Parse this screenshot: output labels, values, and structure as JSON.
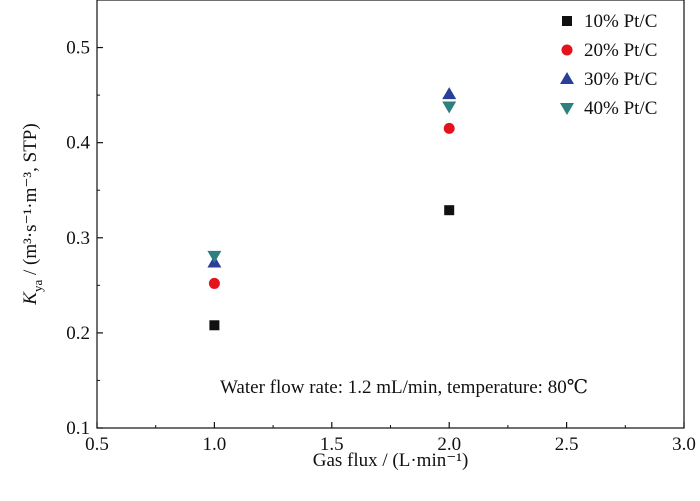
{
  "chart_data": {
    "type": "scatter",
    "title": "",
    "xlabel": "Gas flux / (L·min⁻¹)",
    "ylabel": "K_ya / (m³·s⁻¹·m⁻³, STP)",
    "ylabel_main": "K",
    "ylabel_sub": "ya",
    "ylabel_rest": " / (m³·s⁻¹·m⁻³, STP)",
    "xlim": [
      0.5,
      3.0
    ],
    "ylim": [
      0.1,
      0.55
    ],
    "xticks": [
      0.5,
      1.0,
      1.5,
      2.0,
      2.5,
      3.0
    ],
    "xtick_labels": [
      "0.5",
      "1.0",
      "1.5",
      "2.0",
      "2.5",
      "3.0"
    ],
    "yticks": [
      0.1,
      0.2,
      0.3,
      0.4,
      0.5
    ],
    "ytick_labels": [
      "0.1",
      "0.2",
      "0.3",
      "0.4",
      "0.5"
    ],
    "grid": false,
    "legend_position": "top-right",
    "annotation": "Water flow rate: 1.2 mL/min, temperature: 80℃",
    "series": [
      {
        "name": "10% Pt/C",
        "marker": "square",
        "color": "#111111",
        "x": [
          1.0,
          2.0
        ],
        "y": [
          0.208,
          0.329
        ]
      },
      {
        "name": "20% Pt/C",
        "marker": "circle",
        "color": "#e3121b",
        "x": [
          1.0,
          2.0
        ],
        "y": [
          0.252,
          0.415
        ]
      },
      {
        "name": "30% Pt/C",
        "marker": "triangle-up",
        "color": "#2a3f99",
        "x": [
          1.0,
          2.0
        ],
        "y": [
          0.274,
          0.451
        ]
      },
      {
        "name": "40% Pt/C",
        "marker": "triangle-down",
        "color": "#2e7f7e",
        "x": [
          1.0,
          2.0
        ],
        "y": [
          0.281,
          0.438
        ]
      }
    ]
  }
}
